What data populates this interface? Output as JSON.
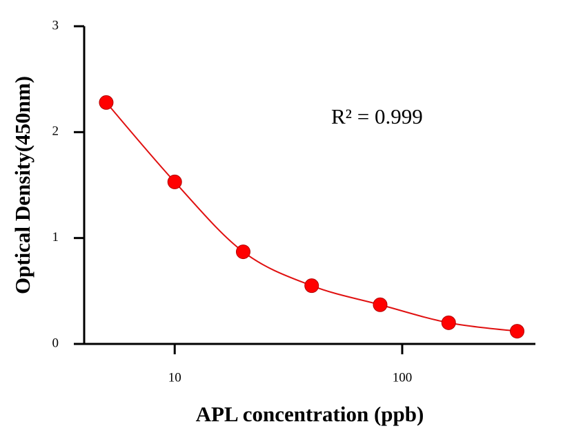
{
  "chart_data": {
    "type": "scatter",
    "xlabel": "APL concentration (ppb)",
    "ylabel": "Optical Density(450nm)",
    "annotation": "R² = 0.999",
    "x": [
      5,
      10,
      20,
      40,
      80,
      160,
      320
    ],
    "series": [
      {
        "color": "#ff0000",
        "line_color": "#e01010",
        "values": [
          2.28,
          1.53,
          0.87,
          0.55,
          0.37,
          0.2,
          0.12
        ]
      }
    ],
    "xscale": "log",
    "xlim": [
      4,
      385
    ],
    "xticks": [
      10,
      100
    ],
    "ylim": [
      0,
      3
    ],
    "yticks": [
      0,
      1,
      2,
      3
    ]
  }
}
